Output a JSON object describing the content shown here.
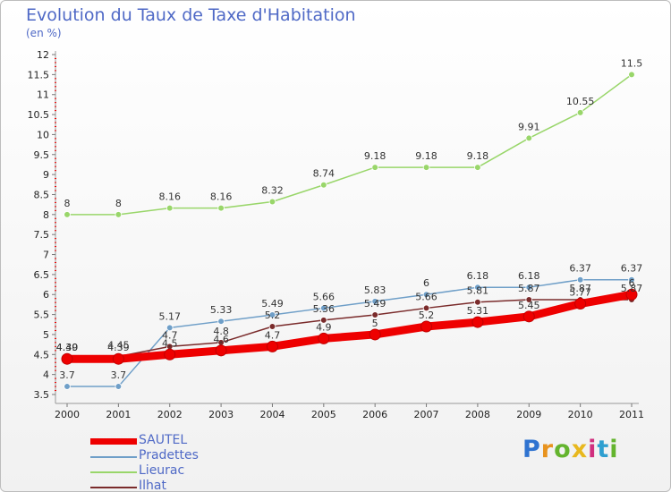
{
  "chart_data": {
    "type": "line",
    "title": "Evolution du Taux de Taxe d'Habitation",
    "subtitle": "(en %)",
    "x": [
      "2000",
      "2001",
      "2002",
      "2003",
      "2004",
      "2005",
      "2006",
      "2007",
      "2008",
      "2009",
      "2010",
      "2011"
    ],
    "ylim": [
      3.5,
      12
    ],
    "yticks": [
      "3.5",
      "4",
      "4.5",
      "5",
      "5.5",
      "6",
      "6.5",
      "7",
      "7.5",
      "8",
      "8.5",
      "9",
      "9.5",
      "10",
      "10.5",
      "11",
      "11.5",
      "12"
    ],
    "grid": false,
    "legend_position": "bottom-left",
    "series": [
      {
        "name": "SAUTEL",
        "color": "#ee0000",
        "values": [
          4.39,
          4.39,
          4.5,
          4.6,
          4.7,
          4.9,
          5,
          5.2,
          5.31,
          5.45,
          5.77,
          6
        ],
        "labels": [
          "4.39",
          "4.39",
          "4.5",
          "4.6",
          "4.7",
          "4.9",
          "5",
          "5.2",
          "5.31",
          "5.45",
          "5.77",
          "6"
        ]
      },
      {
        "name": "Pradettes",
        "color": "#6f9fc8",
        "values": [
          3.7,
          3.7,
          5.17,
          5.33,
          5.49,
          5.66,
          5.83,
          6,
          6.18,
          6.18,
          6.37,
          6.37
        ],
        "labels": [
          "3.7",
          "3.7",
          "5.17",
          "5.33",
          "5.49",
          "5.66",
          "5.83",
          "6",
          "6.18",
          "6.18",
          "6.37",
          "6.37"
        ]
      },
      {
        "name": "Lieurac",
        "color": "#99d66a",
        "values": [
          8,
          8,
          8.16,
          8.16,
          8.32,
          8.74,
          9.18,
          9.18,
          9.18,
          9.91,
          10.55,
          11.5
        ],
        "labels": [
          "8",
          "8",
          "8.16",
          "8.16",
          "8.32",
          "8.74",
          "9.18",
          "9.18",
          "9.18",
          "9.91",
          "10.55",
          "11.5"
        ]
      },
      {
        "name": "Ilhat",
        "color": "#7a2b2b",
        "values": [
          4.4,
          4.45,
          4.7,
          4.8,
          5.2,
          5.36,
          5.49,
          5.66,
          5.81,
          5.87,
          5.87,
          5.87
        ],
        "labels": [
          "4.40",
          "4.45",
          "4.7",
          "4.8",
          "5.2",
          "5.36",
          "5.49",
          "5.66",
          "5.81",
          "5.87",
          "5.87",
          "5.87"
        ]
      }
    ]
  },
  "brand": {
    "letters": [
      "P",
      "r",
      "o",
      "x",
      "i",
      "t",
      "i"
    ],
    "colors": [
      "#2f73d0",
      "#e8931e",
      "#64b42e",
      "#e8b81e",
      "#d02f7e",
      "#2f9fd0",
      "#64b42e"
    ]
  }
}
